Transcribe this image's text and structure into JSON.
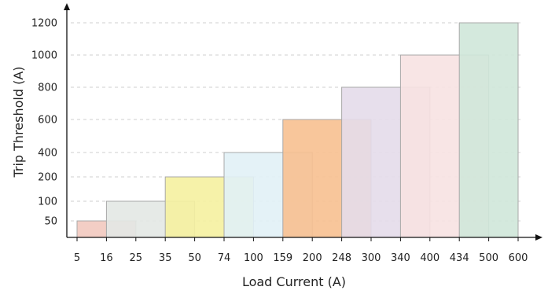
{
  "chart_data": {
    "type": "bar",
    "title": "",
    "xlabel": "Load Current (A)",
    "ylabel": "Trip Threshold (A)",
    "grid": "horizontal-dashed",
    "x_tick_labels": [
      "5",
      "16",
      "25",
      "35",
      "50",
      "74",
      "100",
      "159",
      "200",
      "248",
      "300",
      "340",
      "400",
      "434",
      "500",
      "600"
    ],
    "y_tick_labels": [
      "50",
      "100",
      "200",
      "400",
      "600",
      "800",
      "1000",
      "1200"
    ],
    "series": [
      {
        "range": [
          5,
          25
        ],
        "value": 50,
        "color": "#f2c9bf"
      },
      {
        "range": [
          16,
          50
        ],
        "value": 100,
        "color": "#e3e8e4"
      },
      {
        "range": [
          35,
          100
        ],
        "value": 200,
        "color": "#f5f1a0"
      },
      {
        "range": [
          74,
          200
        ],
        "value": 400,
        "color": "#e1f1f6"
      },
      {
        "range": [
          159,
          300
        ],
        "value": 600,
        "color": "#f7c090"
      },
      {
        "range": [
          248,
          400
        ],
        "value": 800,
        "color": "#e4dcea"
      },
      {
        "range": [
          340,
          500
        ],
        "value": 1000,
        "color": "#f7e2e2"
      },
      {
        "range": [
          434,
          600
        ],
        "value": 1200,
        "color": "#cfe7d9"
      }
    ]
  }
}
